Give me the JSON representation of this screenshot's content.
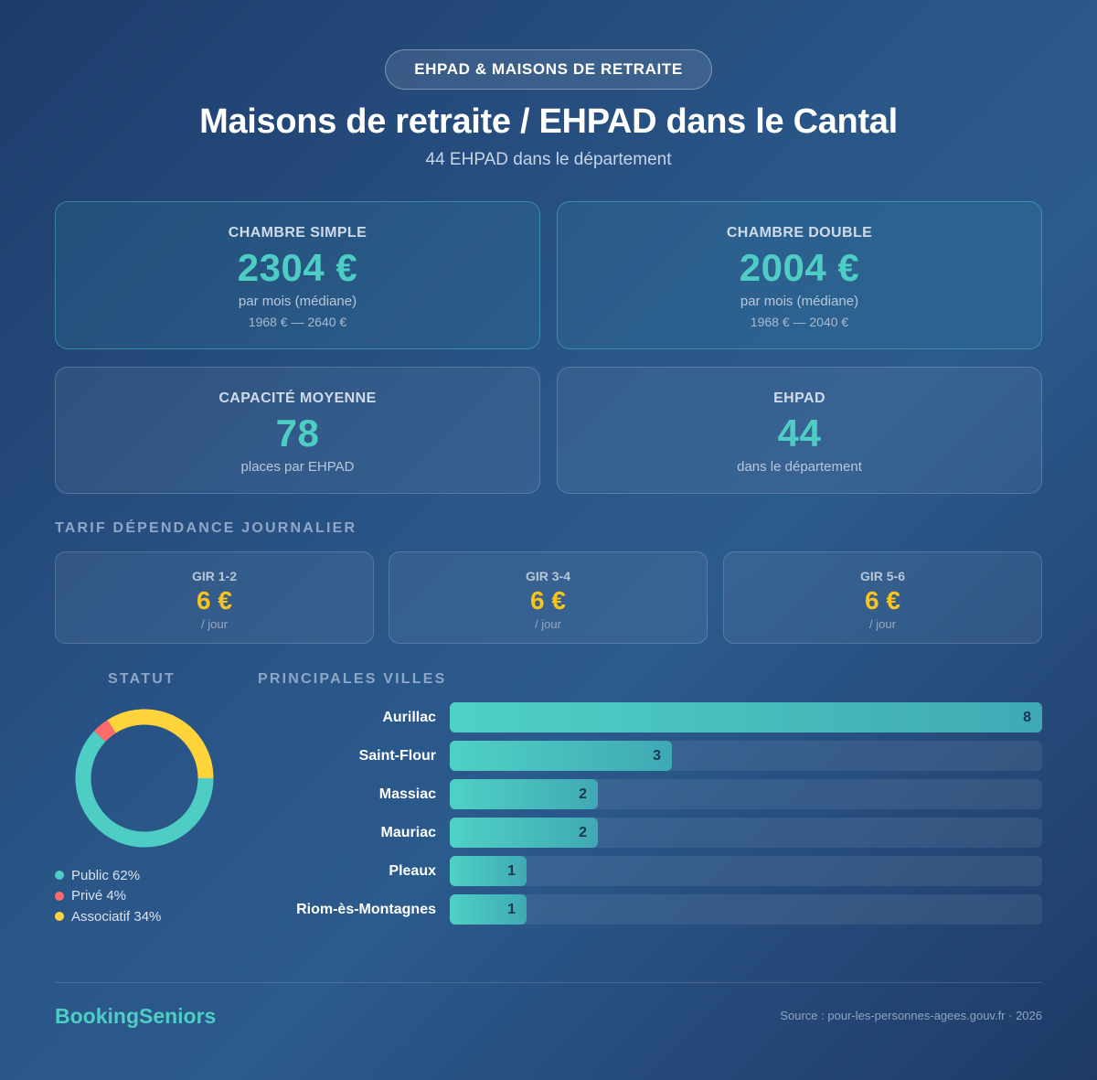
{
  "badge": "EHPAD & MAISONS DE RETRAITE",
  "title": "Maisons de retraite / EHPAD dans le Cantal",
  "subtitle": "44 EHPAD dans le département",
  "cards": {
    "simple": {
      "label": "CHAMBRE SIMPLE",
      "value": "2304 €",
      "sub": "par mois (médiane)",
      "range": "1968 € — 2640 €"
    },
    "double": {
      "label": "CHAMBRE DOUBLE",
      "value": "2004 €",
      "sub": "par mois (médiane)",
      "range": "1968 € — 2040 €"
    },
    "capacity": {
      "label": "CAPACITÉ MOYENNE",
      "value": "78",
      "sub": "places par EHPAD"
    },
    "count": {
      "label": "EHPAD",
      "value": "44",
      "sub": "dans le département"
    }
  },
  "dependance": {
    "label": "TARIF DÉPENDANCE JOURNALIER",
    "items": [
      {
        "label": "GIR 1-2",
        "value": "6 €",
        "unit": "/ jour"
      },
      {
        "label": "GIR 3-4",
        "value": "6 €",
        "unit": "/ jour"
      },
      {
        "label": "GIR 5-6",
        "value": "6 €",
        "unit": "/ jour"
      }
    ]
  },
  "statut": {
    "label": "STATUT",
    "legend": [
      "Public 62%",
      "Privé 4%",
      "Associatif 34%"
    ]
  },
  "villes": {
    "label": "PRINCIPALES VILLES"
  },
  "colors": {
    "public": "#4ecdc4",
    "prive": "#ff6b6b",
    "associatif": "#ffd43b",
    "accent": "#4ecdc4",
    "gir": "#fcc419"
  },
  "chart_data": [
    {
      "type": "pie",
      "title": "STATUT",
      "categories": [
        "Public",
        "Privé",
        "Associatif"
      ],
      "values": [
        62,
        4,
        34
      ]
    },
    {
      "type": "bar",
      "title": "PRINCIPALES VILLES",
      "categories": [
        "Aurillac",
        "Saint-Flour",
        "Massiac",
        "Mauriac",
        "Pleaux",
        "Riom-ès-Montagnes"
      ],
      "values": [
        8,
        3,
        2,
        2,
        1,
        1
      ],
      "xlim": [
        0,
        8
      ]
    }
  ],
  "footer": {
    "brand": "BookingSeniors",
    "source": "Source : pour-les-personnes-agees.gouv.fr · 2026"
  }
}
